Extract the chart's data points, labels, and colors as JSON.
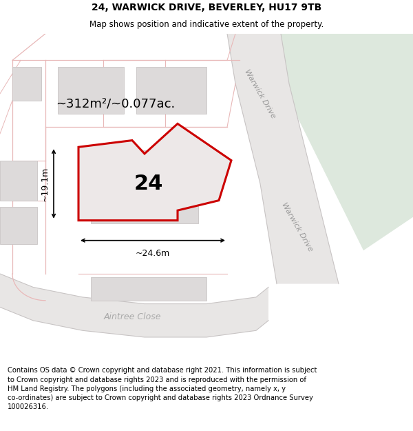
{
  "title": "24, WARWICK DRIVE, BEVERLEY, HU17 9TB",
  "subtitle": "Map shows position and indicative extent of the property.",
  "footer": "Contains OS data © Crown copyright and database right 2021. This information is subject\nto Crown copyright and database rights 2023 and is reproduced with the permission of\nHM Land Registry. The polygons (including the associated geometry, namely x, y\nco-ordinates) are subject to Crown copyright and database rights 2023 Ordnance Survey\n100026316.",
  "map_bg": "#f2f0f0",
  "road_fill": "#e8e6e5",
  "road_pink": "#e8b8b8",
  "building_fill": "#dddada",
  "building_edge": "#c8c4c4",
  "highlight_fill": "#ede8e8",
  "highlight_stroke": "#cc0000",
  "green_fill": "#dde8dd",
  "area_label": "~312m²/~0.077ac.",
  "number_label": "24",
  "dim_width": "~24.6m",
  "dim_height": "~19.1m",
  "warwick_label": "Warwick Drive",
  "aintree_label": "Aintree Close",
  "title_fs": 10,
  "subtitle_fs": 8.5,
  "footer_fs": 7.2,
  "area_fs": 13,
  "number_fs": 22,
  "dim_fs": 9,
  "road_label_fs": 8,
  "aintree_fs": 9
}
